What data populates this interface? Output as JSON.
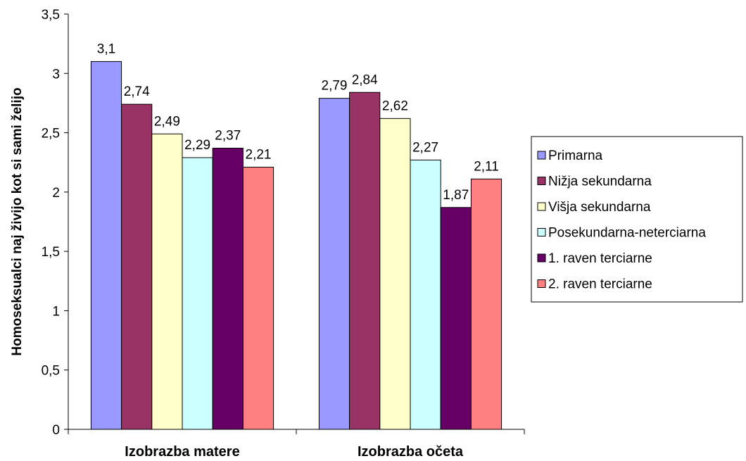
{
  "chart_data": {
    "type": "bar",
    "categories": [
      "Izobrazba matere",
      "Izobrazba očeta"
    ],
    "series": [
      {
        "name": "Primarna",
        "values": [
          3.1,
          2.79
        ],
        "labels": [
          "3,1",
          "2,79"
        ],
        "color": "#9999FF"
      },
      {
        "name": "Nižja sekundarna",
        "values": [
          2.74,
          2.84
        ],
        "labels": [
          "2,74",
          "2,84"
        ],
        "color": "#993366"
      },
      {
        "name": "Višja sekundarna",
        "values": [
          2.49,
          2.62
        ],
        "labels": [
          "2,49",
          "2,62"
        ],
        "color": "#FFFFCC"
      },
      {
        "name": "Posekundarna-neterciarna",
        "values": [
          2.29,
          2.27
        ],
        "labels": [
          "2,29",
          "2,27"
        ],
        "color": "#CCFFFF"
      },
      {
        "name": "1. raven terciarne",
        "values": [
          2.37,
          1.87
        ],
        "labels": [
          "2,37",
          "1,87"
        ],
        "color": "#660066"
      },
      {
        "name": "2. raven terciarne",
        "values": [
          2.21,
          2.11
        ],
        "labels": [
          "2,21",
          "2,11"
        ],
        "color": "#FF8080"
      }
    ],
    "ylabel": "Homoseksualci naj živijo kot si sami želijo",
    "xlabel": "",
    "ylim": [
      0,
      3.5
    ],
    "yticks": [
      0,
      0.5,
      1,
      1.5,
      2,
      2.5,
      3,
      3.5
    ],
    "ytick_labels": [
      "0",
      "0,5",
      "1",
      "1,5",
      "2",
      "2,5",
      "3",
      "3,5"
    ],
    "grid": false,
    "legend": "right"
  }
}
